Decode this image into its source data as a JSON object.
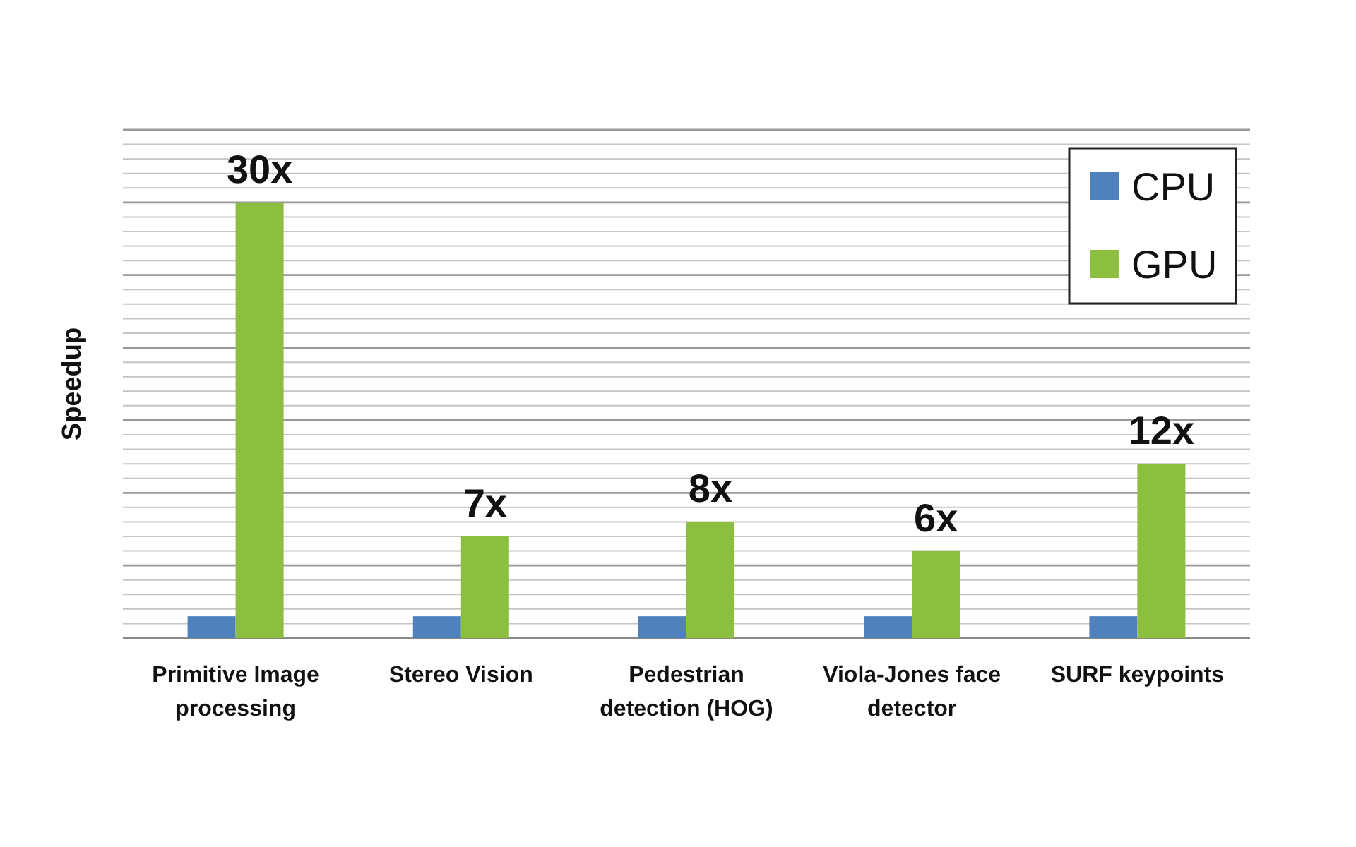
{
  "chart_data": {
    "type": "bar",
    "ylabel": "Speedup",
    "categories": [
      "Primitive Image processing",
      "Stereo Vision",
      "Pedestrian detection (HOG)",
      "Viola-Jones face detector",
      "SURF keypoints"
    ],
    "series": [
      {
        "name": "CPU",
        "color": "#4f81bd",
        "values": [
          1.5,
          1.5,
          1.5,
          1.5,
          1.5
        ]
      },
      {
        "name": "GPU",
        "color": "#8cbf3f",
        "values": [
          30,
          7,
          8,
          6,
          12
        ],
        "value_labels": [
          "30x",
          "7x",
          "8x",
          "6x",
          "12x"
        ]
      }
    ],
    "ylim": [
      0,
      35
    ],
    "yticks": [
      {
        "value": 0,
        "label": null
      },
      {
        "value": 1,
        "label": null
      },
      {
        "value": 2,
        "label": null
      },
      {
        "value": 3,
        "label": null
      },
      {
        "value": 4,
        "label": null
      },
      {
        "value": 5,
        "label": null
      },
      {
        "value": 6,
        "label": null
      },
      {
        "value": 7,
        "label": null
      },
      {
        "value": 8,
        "label": null
      },
      {
        "value": 9,
        "label": null
      },
      {
        "value": 10,
        "label": null
      },
      {
        "value": 11,
        "label": null
      },
      {
        "value": 12,
        "label": null
      },
      {
        "value": 13,
        "label": null
      },
      {
        "value": 14,
        "label": null
      },
      {
        "value": 15,
        "label": null
      },
      {
        "value": 16,
        "label": null
      },
      {
        "value": 17,
        "label": null
      },
      {
        "value": 18,
        "label": null
      },
      {
        "value": 19,
        "label": null
      },
      {
        "value": 20,
        "label": null
      },
      {
        "value": 21,
        "label": null
      },
      {
        "value": 22,
        "label": null
      },
      {
        "value": 23,
        "label": null
      },
      {
        "value": 24,
        "label": null
      },
      {
        "value": 25,
        "label": null
      },
      {
        "value": 26,
        "label": null
      },
      {
        "value": 27,
        "label": null
      },
      {
        "value": 28,
        "label": null
      },
      {
        "value": 29,
        "label": null
      },
      {
        "value": 30,
        "label": null
      },
      {
        "value": 31,
        "label": null
      },
      {
        "value": 32,
        "label": null
      },
      {
        "value": 33,
        "label": null
      },
      {
        "value": 34,
        "label": null
      },
      {
        "value": 35,
        "label": null
      }
    ],
    "grid": true,
    "tick_labels": "x",
    "legend": "top right"
  }
}
